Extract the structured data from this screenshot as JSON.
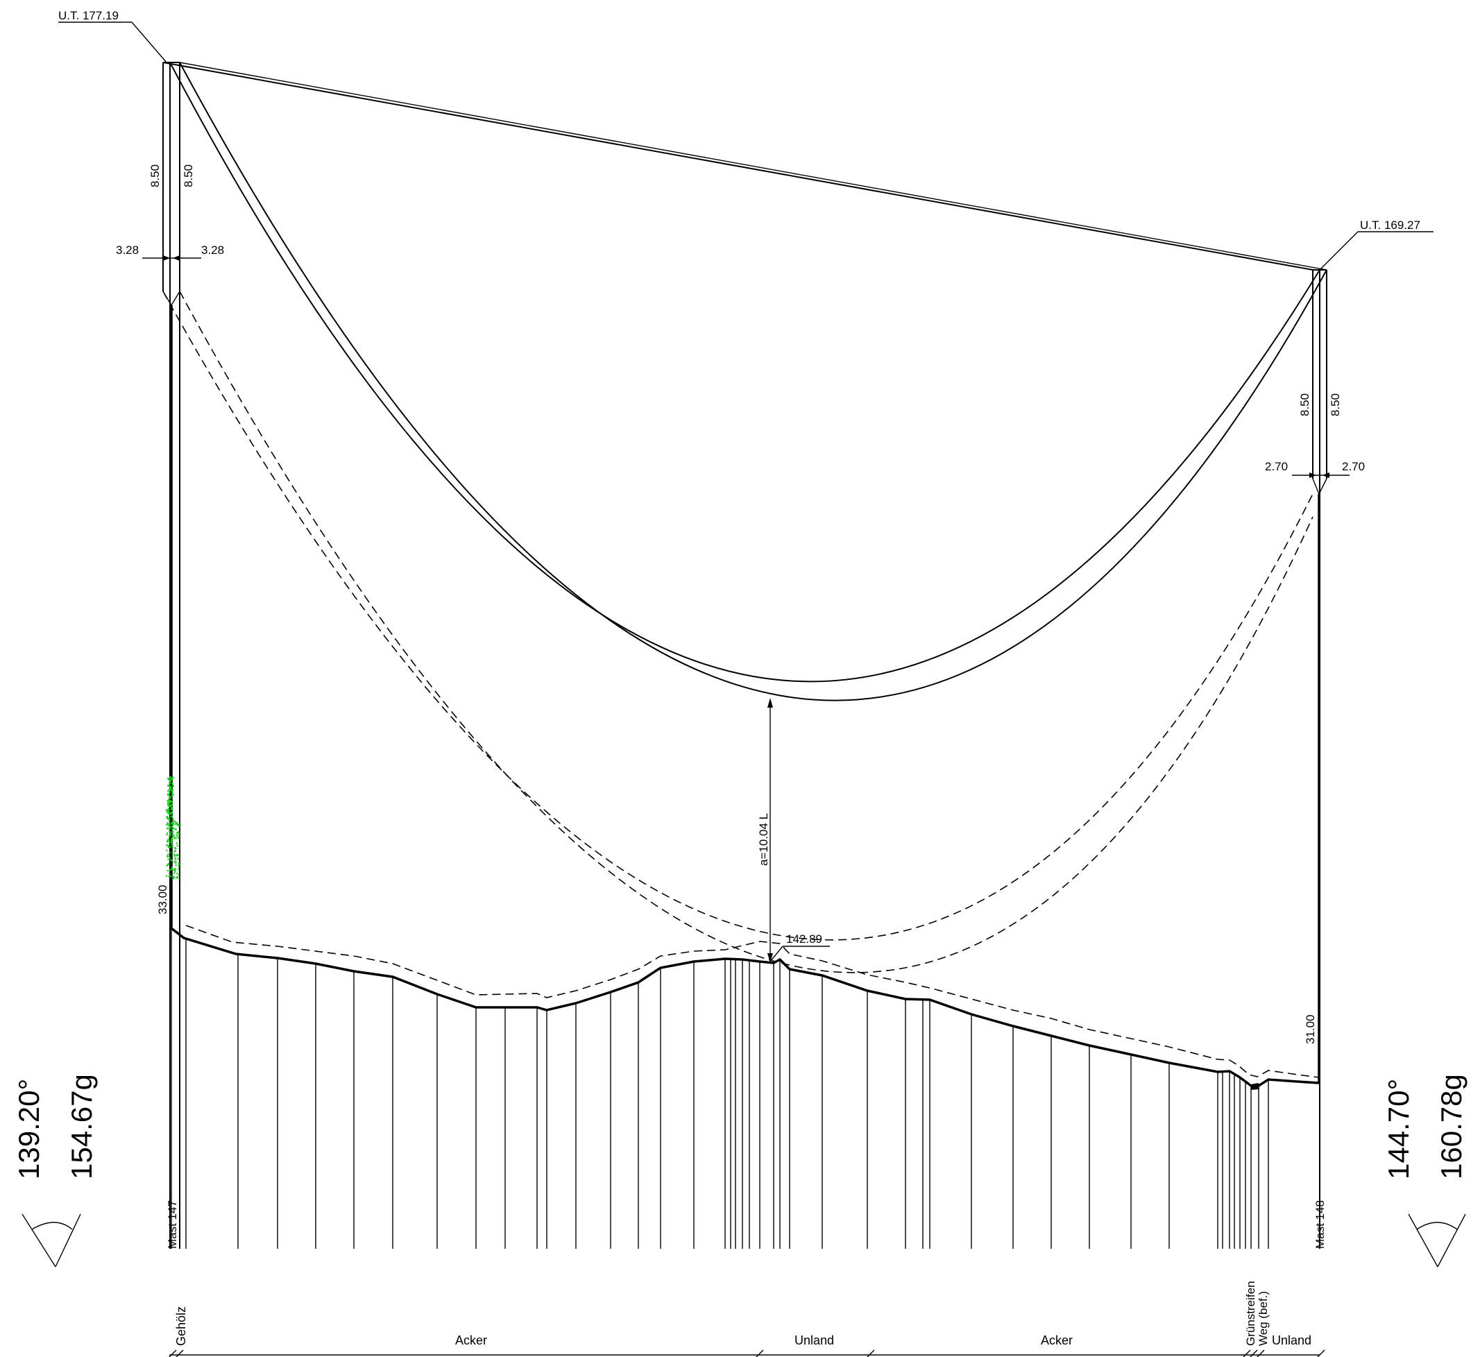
{
  "towers": {
    "left": {
      "ut_label": "U.T. 177.19",
      "height_label": "33.00",
      "name": "Mast 147",
      "crossarm_left": "8.50",
      "crossarm_right": "8.50",
      "offset_left": "3.28",
      "offset_right": "3.28",
      "angle_deg": "139.20°",
      "angle_gon": "154.67g"
    },
    "right": {
      "ut_label": "U.T. 169.27",
      "height_label": "31.00",
      "name": "Mast 148",
      "crossarm_left": "8.50",
      "crossarm_right": "8.50",
      "offset_left": "2.70",
      "offset_right": "2.70",
      "angle_deg": "144.70°",
      "angle_gon": "160.78g"
    }
  },
  "clearance": {
    "label": "a=10.04 L",
    "ground_elevation": "142.89"
  },
  "land_use": [
    {
      "label": "Gehölz",
      "vertical": true
    },
    {
      "label": "Acker",
      "vertical": false
    },
    {
      "label": "Unland",
      "vertical": false
    },
    {
      "label": "Acker",
      "vertical": false
    },
    {
      "label": "Grünstreifen",
      "vertical": true
    },
    {
      "label": "Weg (bef.)",
      "vertical": true
    },
    {
      "label": "Unland",
      "vertical": false
    }
  ],
  "colors": {
    "line": "#000000",
    "vegetation": "#00e000",
    "background": "#ffffff"
  }
}
